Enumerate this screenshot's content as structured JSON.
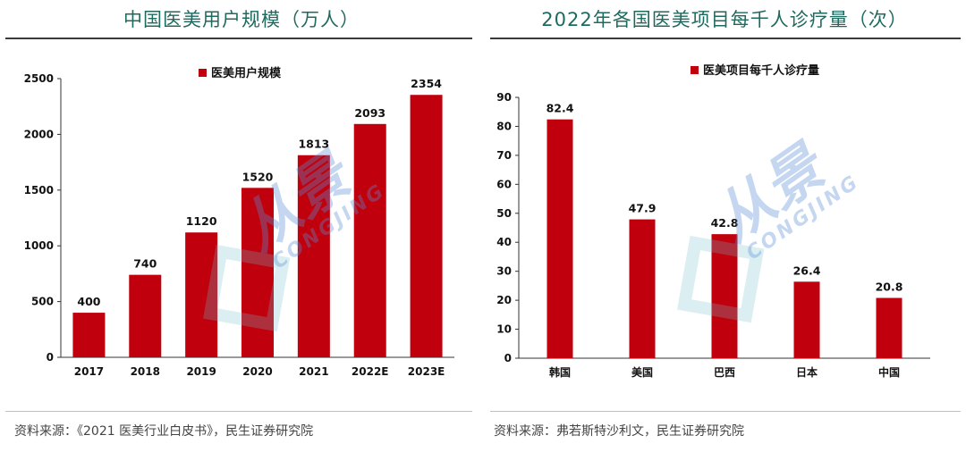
{
  "left": {
    "title": "中国医美用户规模（万人）",
    "source": "资料来源：《2021 医美行业白皮书》，民生证券研究院"
  },
  "right": {
    "title": "2022年各国医美项目每千人诊疗量（次）",
    "source": "资料来源：弗若斯特沙利文，民生证券研究院"
  },
  "watermark": {
    "cn": "从景",
    "en": "CONGJING"
  },
  "chart_data": [
    {
      "type": "bar",
      "title": "中国医美用户规模（万人）",
      "categories": [
        "2017",
        "2018",
        "2019",
        "2020",
        "2021",
        "2022E",
        "2023E"
      ],
      "series": [
        {
          "name": "医美用户规模",
          "values": [
            400,
            740,
            1120,
            1520,
            1813,
            2093,
            2354
          ]
        }
      ],
      "ylim": [
        0,
        2500
      ],
      "yticks": [
        0,
        500,
        1000,
        1500,
        2000,
        2500
      ],
      "xlabel": "",
      "ylabel": "",
      "legend": "top-center",
      "grid": false,
      "color": "#c0000c"
    },
    {
      "type": "bar",
      "title": "2022年各国医美项目每千人诊疗量（次）",
      "categories": [
        "韩国",
        "美国",
        "巴西",
        "日本",
        "中国"
      ],
      "series": [
        {
          "name": "医美项目每千人诊疗量",
          "values": [
            82.4,
            47.9,
            42.8,
            26.4,
            20.8
          ]
        }
      ],
      "ylim": [
        0,
        90
      ],
      "yticks": [
        0,
        10,
        20,
        30,
        40,
        50,
        60,
        70,
        80,
        90
      ],
      "xlabel": "",
      "ylabel": "",
      "legend": "top-center",
      "grid": false,
      "color": "#c0000c"
    }
  ]
}
